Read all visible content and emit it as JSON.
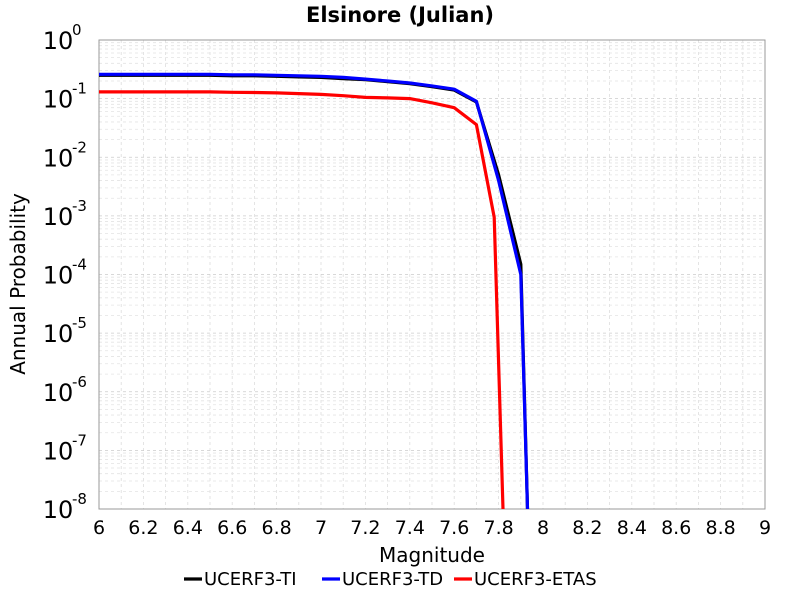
{
  "chart_data": {
    "type": "line",
    "title": "Elsinore (Julian)",
    "xlabel": "Magnitude",
    "ylabel": "Annual Probability",
    "xlim": [
      6,
      9
    ],
    "ylim": [
      1e-08,
      1
    ],
    "yscale": "log",
    "grid": true,
    "legend_position": "bottom",
    "x_ticks": [
      "6",
      "6.2",
      "6.4",
      "6.6",
      "6.8",
      "7",
      "7.2",
      "7.4",
      "7.6",
      "7.8",
      "8",
      "8.2",
      "8.4",
      "8.6",
      "8.8",
      "9"
    ],
    "y_ticks": [
      {
        "base": "10",
        "exp": "0"
      },
      {
        "base": "10",
        "exp": "-1"
      },
      {
        "base": "10",
        "exp": "-2"
      },
      {
        "base": "10",
        "exp": "-3"
      },
      {
        "base": "10",
        "exp": "-4"
      },
      {
        "base": "10",
        "exp": "-5"
      },
      {
        "base": "10",
        "exp": "-6"
      },
      {
        "base": "10",
        "exp": "-7"
      },
      {
        "base": "10",
        "exp": "-8"
      }
    ],
    "series": [
      {
        "name": "UCERF3-TI",
        "color": "#000000",
        "x": [
          6.0,
          6.1,
          6.2,
          6.3,
          6.4,
          6.5,
          6.6,
          6.7,
          6.8,
          6.9,
          7.0,
          7.1,
          7.2,
          7.3,
          7.4,
          7.5,
          7.6,
          7.7,
          7.8,
          7.9,
          7.93
        ],
        "y": [
          0.25,
          0.25,
          0.25,
          0.25,
          0.25,
          0.25,
          0.245,
          0.245,
          0.24,
          0.235,
          0.23,
          0.22,
          0.21,
          0.195,
          0.18,
          0.16,
          0.14,
          0.088,
          0.005,
          0.00015,
          1e-08
        ]
      },
      {
        "name": "UCERF3-TD",
        "color": "#0000ff",
        "x": [
          6.0,
          6.1,
          6.2,
          6.3,
          6.4,
          6.5,
          6.6,
          6.7,
          6.8,
          6.9,
          7.0,
          7.1,
          7.2,
          7.3,
          7.4,
          7.5,
          7.6,
          7.7,
          7.8,
          7.9,
          7.93
        ],
        "y": [
          0.26,
          0.26,
          0.26,
          0.26,
          0.26,
          0.26,
          0.255,
          0.255,
          0.25,
          0.245,
          0.24,
          0.23,
          0.215,
          0.2,
          0.185,
          0.165,
          0.145,
          0.09,
          0.004,
          0.0001,
          1e-08
        ]
      },
      {
        "name": "UCERF3-ETAS",
        "color": "#ff0000",
        "x": [
          6.0,
          6.1,
          6.2,
          6.3,
          6.4,
          6.5,
          6.6,
          6.7,
          6.8,
          6.9,
          7.0,
          7.1,
          7.2,
          7.3,
          7.4,
          7.5,
          7.6,
          7.7,
          7.78,
          7.82
        ],
        "y": [
          0.13,
          0.13,
          0.13,
          0.13,
          0.13,
          0.13,
          0.128,
          0.127,
          0.125,
          0.122,
          0.118,
          0.112,
          0.105,
          0.103,
          0.1,
          0.085,
          0.07,
          0.036,
          0.00095,
          1e-08
        ]
      }
    ]
  }
}
